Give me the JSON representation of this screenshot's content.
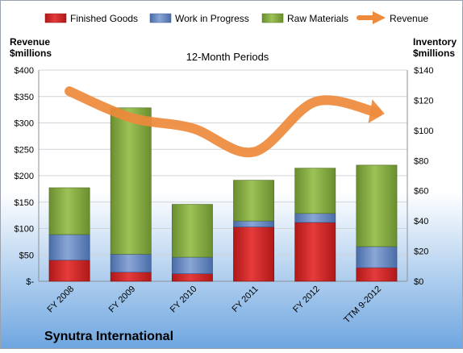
{
  "chart_data": {
    "type": "bar",
    "title": "12-Month Periods",
    "subtitle": "Synutra International",
    "categories": [
      "FY 2008",
      "FY 2009",
      "FY 2010",
      "FY 2011",
      "FY 2012",
      "TTM 9-2012"
    ],
    "series": [
      {
        "name": "Finished Goods",
        "kind": "stacked-bar",
        "axis": "right",
        "color": "#e53b3b",
        "values": [
          14,
          6,
          5,
          36,
          39,
          9
        ]
      },
      {
        "name": "Work in Progress",
        "kind": "stacked-bar",
        "axis": "right",
        "color": "#6f8fc4",
        "values": [
          17,
          12,
          11,
          4,
          6,
          14
        ]
      },
      {
        "name": "Raw Materials",
        "kind": "stacked-bar",
        "axis": "right",
        "color": "#8db14b",
        "values": [
          31,
          97,
          35,
          27,
          30,
          54
        ]
      },
      {
        "name": "Revenue",
        "kind": "line",
        "axis": "left",
        "color": "#ee8a3c",
        "values": [
          360,
          310,
          290,
          245,
          340,
          320
        ]
      }
    ],
    "left_axis": {
      "label_line1": "Revenue",
      "label_line2": "$millions",
      "range": [
        0,
        400
      ],
      "ticks": [
        "$-",
        "$50",
        "$100",
        "$150",
        "$200",
        "$250",
        "$300",
        "$350",
        "$400"
      ]
    },
    "right_axis": {
      "label_line1": "Inventory",
      "label_line2": "$millions",
      "range": [
        0,
        140
      ],
      "ticks": [
        "$0",
        "$20",
        "$40",
        "$60",
        "$80",
        "$100",
        "$120",
        "$140"
      ]
    },
    "legend_position": "top",
    "grid": true
  },
  "colors": {
    "background_top": "#ffffff",
    "background_bottom": "#6ea6e0",
    "frame": "#9aa3ad"
  }
}
